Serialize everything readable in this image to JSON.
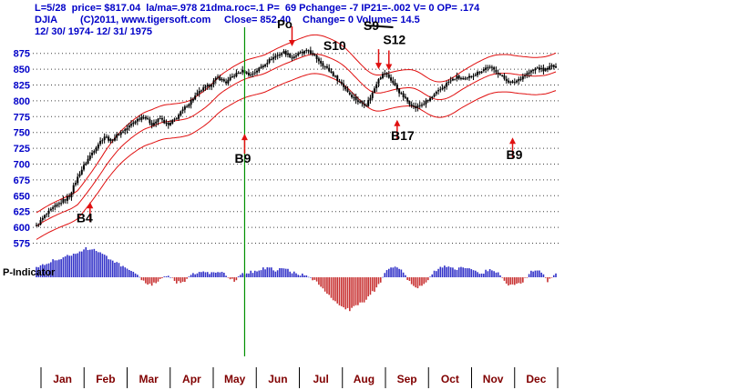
{
  "header": {
    "line1": "L=5/28  price= $817.04  la/ma=.978 21dma.roc=.1 P=  69 Pchange= -7 IP21=-.002 V= 0 OP= .174",
    "symbol": "DJIA",
    "copyright": "(C)2011, www.tigersoft.com",
    "close": "Close= 852.40",
    "change": "Change= 0 Volume= 14.5",
    "date_range": "12/ 30/ 1974- 12/ 31/ 1975"
  },
  "indicator_label": "P-Indicator",
  "colors": {
    "header_text": "#0000C8",
    "axis_text": "#0000C8",
    "month_text": "#800000",
    "grid": "#404040",
    "candle": "#000000",
    "band": "#E01010",
    "cursor": "#009000",
    "arrow": "#E01010",
    "signal_text": "#000000",
    "ind_pos": "#3232C8",
    "ind_neg": "#C83232"
  },
  "chart_data": {
    "type": "candlestick",
    "title": "DJIA daily 12/30/1974 - 12/31/1975 with 21-day bands and P-Indicator histogram",
    "x_months": [
      "Jan",
      "Feb",
      "Mar",
      "Apr",
      "May",
      "Jun",
      "Jul",
      "Aug",
      "Sep",
      "Oct",
      "Nov",
      "Dec"
    ],
    "y_ticks": [
      875,
      850,
      825,
      800,
      775,
      750,
      725,
      700,
      675,
      650,
      625,
      600,
      575
    ],
    "y_min": 575,
    "y_max": 875,
    "trading_days": 253,
    "ma_window": 21,
    "band_upper_mult": 1.035,
    "band_lower_mult": 0.965,
    "close_waypoints": [
      [
        0,
        602
      ],
      [
        4,
        618
      ],
      [
        8,
        630
      ],
      [
        12,
        640
      ],
      [
        16,
        650
      ],
      [
        21,
        686
      ],
      [
        25,
        708
      ],
      [
        29,
        728
      ],
      [
        33,
        744
      ],
      [
        36,
        737
      ],
      [
        40,
        748
      ],
      [
        44,
        757
      ],
      [
        48,
        769
      ],
      [
        52,
        776
      ],
      [
        56,
        763
      ],
      [
        60,
        772
      ],
      [
        64,
        761
      ],
      [
        68,
        774
      ],
      [
        72,
        789
      ],
      [
        76,
        804
      ],
      [
        80,
        817
      ],
      [
        84,
        825
      ],
      [
        88,
        837
      ],
      [
        92,
        829
      ],
      [
        96,
        841
      ],
      [
        100,
        847
      ],
      [
        104,
        841
      ],
      [
        108,
        851
      ],
      [
        112,
        862
      ],
      [
        116,
        871
      ],
      [
        120,
        877
      ],
      [
        124,
        869
      ],
      [
        128,
        875
      ],
      [
        132,
        879
      ],
      [
        136,
        867
      ],
      [
        140,
        854
      ],
      [
        144,
        841
      ],
      [
        148,
        827
      ],
      [
        152,
        811
      ],
      [
        156,
        799
      ],
      [
        160,
        794
      ],
      [
        163,
        812
      ],
      [
        166,
        836
      ],
      [
        169,
        844
      ],
      [
        172,
        833
      ],
      [
        176,
        814
      ],
      [
        180,
        799
      ],
      [
        184,
        789
      ],
      [
        188,
        796
      ],
      [
        192,
        806
      ],
      [
        196,
        818
      ],
      [
        200,
        830
      ],
      [
        204,
        837
      ],
      [
        208,
        833
      ],
      [
        211,
        840
      ],
      [
        215,
        846
      ],
      [
        219,
        854
      ],
      [
        223,
        847
      ],
      [
        227,
        835
      ],
      [
        231,
        827
      ],
      [
        235,
        837
      ],
      [
        239,
        845
      ],
      [
        243,
        852
      ],
      [
        246,
        848
      ],
      [
        250,
        855
      ],
      [
        252,
        852
      ]
    ],
    "indicator_waypoints": [
      [
        0,
        26
      ],
      [
        4,
        36
      ],
      [
        8,
        44
      ],
      [
        12,
        50
      ],
      [
        16,
        58
      ],
      [
        20,
        66
      ],
      [
        24,
        75
      ],
      [
        28,
        72
      ],
      [
        32,
        60
      ],
      [
        36,
        48
      ],
      [
        40,
        34
      ],
      [
        44,
        20
      ],
      [
        48,
        8
      ],
      [
        52,
        -12
      ],
      [
        56,
        -20
      ],
      [
        60,
        -8
      ],
      [
        64,
        6
      ],
      [
        68,
        -14
      ],
      [
        72,
        -10
      ],
      [
        76,
        8
      ],
      [
        80,
        14
      ],
      [
        84,
        10
      ],
      [
        88,
        16
      ],
      [
        92,
        6
      ],
      [
        96,
        -10
      ],
      [
        100,
        8
      ],
      [
        104,
        14
      ],
      [
        108,
        20
      ],
      [
        112,
        26
      ],
      [
        116,
        18
      ],
      [
        120,
        24
      ],
      [
        124,
        14
      ],
      [
        128,
        8
      ],
      [
        132,
        0
      ],
      [
        136,
        -14
      ],
      [
        140,
        -38
      ],
      [
        144,
        -62
      ],
      [
        148,
        -78
      ],
      [
        152,
        -85
      ],
      [
        156,
        -74
      ],
      [
        160,
        -58
      ],
      [
        164,
        -34
      ],
      [
        167,
        -10
      ],
      [
        170,
        18
      ],
      [
        174,
        26
      ],
      [
        178,
        14
      ],
      [
        181,
        -12
      ],
      [
        184,
        -28
      ],
      [
        187,
        -24
      ],
      [
        190,
        -6
      ],
      [
        193,
        14
      ],
      [
        196,
        24
      ],
      [
        200,
        30
      ],
      [
        204,
        22
      ],
      [
        208,
        26
      ],
      [
        212,
        16
      ],
      [
        216,
        10
      ],
      [
        220,
        22
      ],
      [
        224,
        12
      ],
      [
        228,
        -16
      ],
      [
        232,
        -24
      ],
      [
        236,
        -10
      ],
      [
        240,
        16
      ],
      [
        244,
        20
      ],
      [
        248,
        -12
      ],
      [
        252,
        10
      ]
    ],
    "cursor_day": 101,
    "signals": [
      {
        "label": "B4",
        "direction": "up",
        "day": 26,
        "tip_price": 640,
        "text_price": 608,
        "text_dx": -6,
        "arrow": true
      },
      {
        "label": "B9",
        "direction": "up",
        "day": 101,
        "tip_price": 748,
        "text_price": 702,
        "text_dx": -2,
        "arrow": true
      },
      {
        "label": "B17",
        "direction": "up",
        "day": 175,
        "tip_price": 770,
        "text_price": 738,
        "text_dx": 6,
        "arrow": true
      },
      {
        "label": "B9",
        "direction": "up",
        "day": 231,
        "tip_price": 742,
        "text_price": 708,
        "text_dx": 2,
        "arrow": true
      },
      {
        "label": "Po",
        "direction": "down",
        "day": 124,
        "tip_price": 886,
        "text_price": 915,
        "text_dx": -8,
        "arrow": true
      },
      {
        "label": "S10",
        "direction": "down",
        "day": 150,
        "tip_price": 852,
        "text_price": 880,
        "text_dx": -12,
        "arrow": false
      },
      {
        "label": "S9",
        "direction": "down",
        "day": 166,
        "tip_price": 850,
        "text_price": 912,
        "text_dx": -8,
        "arrow": true,
        "strike": true
      },
      {
        "label": "S12",
        "direction": "down",
        "day": 171,
        "tip_price": 848,
        "text_price": 890,
        "text_dx": 6,
        "arrow": true
      }
    ]
  }
}
